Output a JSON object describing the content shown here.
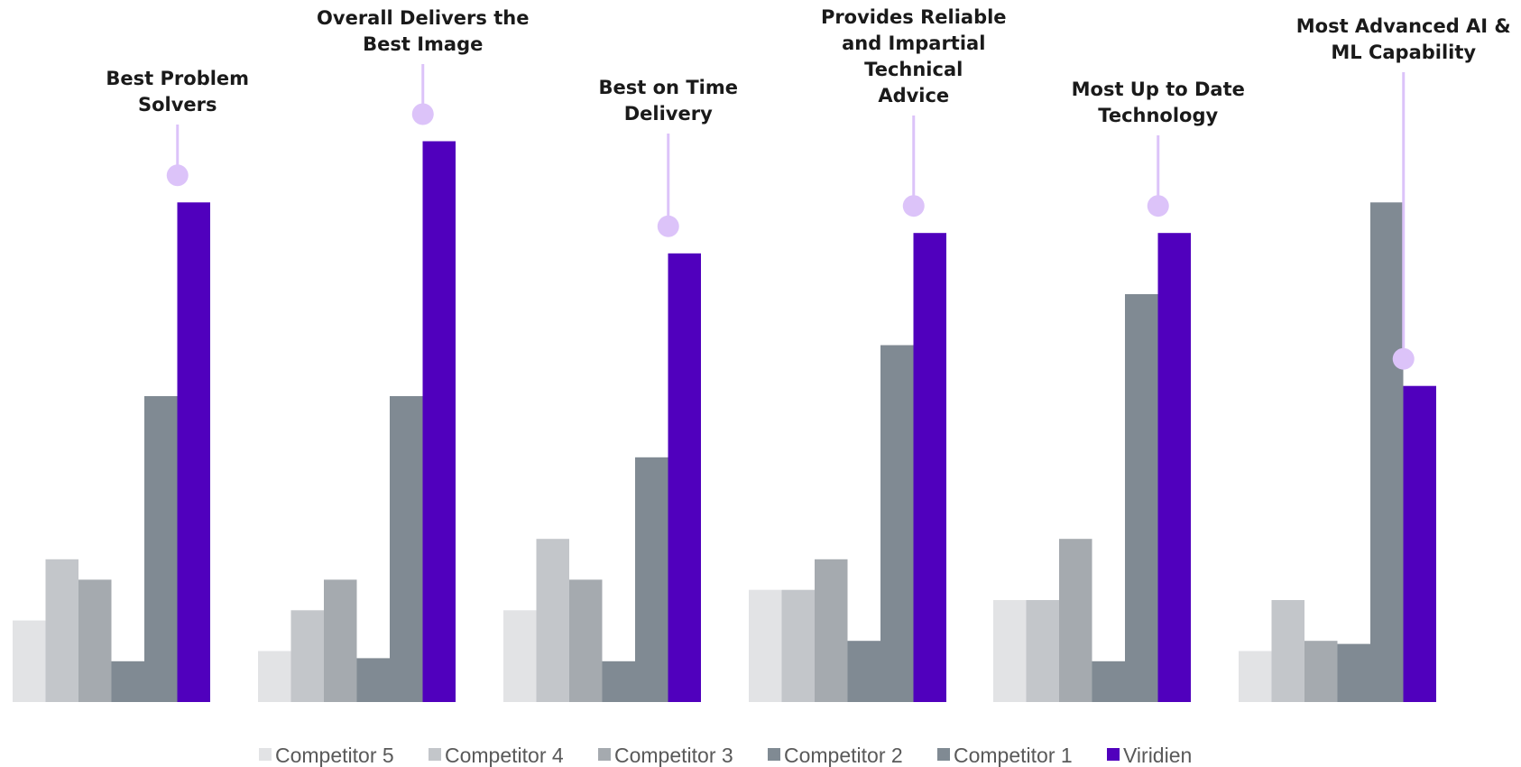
{
  "chart_data": {
    "type": "bar",
    "categories": [
      "Best Problem\nSolvers",
      "Overall Delivers the\nBest Image",
      "Best on Time\nDelivery",
      "Provides Reliable\nand Impartial\nTechnical\nAdvice",
      "Most Up to Date\nTechnology",
      "Most Advanced AI &\nML Capability"
    ],
    "series": [
      {
        "name": "Competitor 5",
        "color": "#e2e3e5",
        "values": [
          8.0,
          5.0,
          9.0,
          11.0,
          10.0,
          5.0
        ]
      },
      {
        "name": "Competitor 4",
        "color": "#c3c6ca",
        "values": [
          14.0,
          9.0,
          16.0,
          11.0,
          10.0,
          10.0
        ]
      },
      {
        "name": "Competitor 3",
        "color": "#a5aaaf",
        "values": [
          12.0,
          12.0,
          12.0,
          14.0,
          16.0,
          6.0
        ]
      },
      {
        "name": "Competitor 2",
        "color": "#808a93",
        "values": [
          4.0,
          4.3,
          4.0,
          6.0,
          4.0,
          5.7
        ]
      },
      {
        "name": "Competitor 1",
        "color": "#808a93",
        "values": [
          30.0,
          30.0,
          24.0,
          35.0,
          40.0,
          49.0
        ]
      },
      {
        "name": "Viridien",
        "color": "#5000bd",
        "values": [
          49.0,
          55.0,
          44.0,
          46.0,
          46.0,
          31.0
        ]
      }
    ],
    "ylim": [
      0,
      70
    ],
    "legend_position": "bottom",
    "grid": false,
    "highlight": {
      "series": "Viridien",
      "marker_color": "#dcc3f9"
    }
  }
}
